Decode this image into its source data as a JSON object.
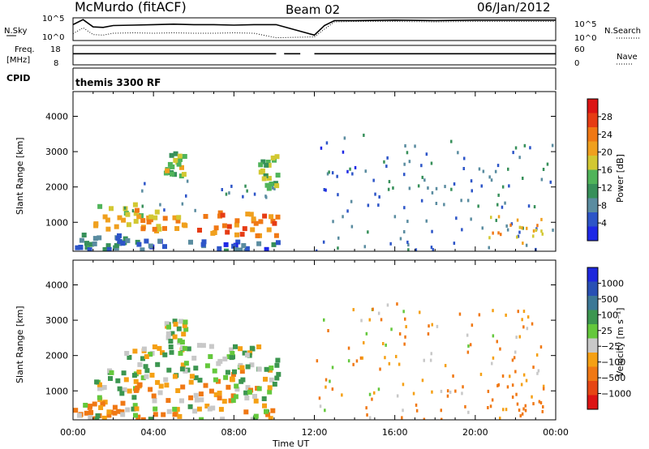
{
  "header": {
    "station": "McMurdo (fitACF)",
    "beam": "Beam 02",
    "date": "06/Jan/2012"
  },
  "chart_data": [
    {
      "type": "line",
      "panel": "noise",
      "left_label": "N.Sky",
      "right_label": "N.Search",
      "left_ticks": [
        "10^5",
        "10^0"
      ],
      "right_ticks": [
        "10^5",
        "10^0"
      ],
      "log_scale": true,
      "x": [
        0,
        0.5,
        1.0,
        1.5,
        2,
        3,
        4,
        5,
        6,
        7,
        8,
        9,
        10.1,
        12,
        12.5,
        13,
        14,
        16,
        18,
        20,
        22,
        24
      ],
      "series": [
        {
          "style": "solid",
          "values": [
            3.5,
            4.6,
            3.0,
            2.9,
            3.3,
            3.4,
            3.5,
            3.6,
            3.5,
            3.5,
            3.4,
            3.5,
            3.5,
            1.2,
            3.3,
            4.4,
            4.4,
            4.5,
            4.4,
            4.5,
            4.5,
            4.5
          ]
        },
        {
          "style": "dotted",
          "values": [
            1.5,
            2.8,
            1.3,
            1.2,
            1.6,
            1.7,
            1.6,
            1.7,
            1.6,
            1.6,
            1.7,
            1.6,
            0.6,
            0.8,
            2.5,
            4.1,
            4.2,
            4.2,
            4.1,
            4.2,
            4.2,
            4.2
          ]
        }
      ]
    },
    {
      "type": "line",
      "panel": "frequency",
      "left_label": "Freq.",
      "left_unit": "[MHz]",
      "right_label": "Nave",
      "left_ticks": [
        "18",
        "8"
      ],
      "right_ticks": [
        "60",
        "0"
      ],
      "series": [
        {
          "name": "Freq.",
          "style": "solid",
          "segments": [
            [
              0,
              10.1
            ],
            [
              10.5,
              11.3
            ],
            [
              12.0,
              24
            ]
          ],
          "value": 10.3
        },
        {
          "name": "Nave",
          "style": "dotted",
          "segments": [
            [
              0,
              10.1
            ],
            [
              10.5,
              11.3
            ],
            [
              12.0,
              24
            ]
          ],
          "value": 35
        }
      ]
    },
    {
      "type": "text",
      "panel": "cpid",
      "label": "CPID",
      "value": "themis 3300 RF"
    },
    {
      "type": "heatmap",
      "panel": "power",
      "ylabel": "Slant Range [km]",
      "yticks": [
        "4000",
        "3000",
        "2000",
        "1000"
      ],
      "ylim": [
        180,
        4700
      ],
      "xlim": [
        0,
        24
      ],
      "colorbar": {
        "label": "Power [dB]",
        "ticks": [
          "28",
          "24",
          "20",
          "16",
          "12",
          "8",
          "4"
        ],
        "range": [
          0,
          30
        ]
      },
      "blobs": [
        {
          "x": [
            0,
            2.5
          ],
          "y": [
            180,
            700
          ],
          "v": 9
        },
        {
          "x": [
            1.0,
            3.5
          ],
          "y": [
            700,
            1500
          ],
          "v": 18
        },
        {
          "x": [
            3.0,
            6.0
          ],
          "y": [
            750,
            1300
          ],
          "v": 19
        },
        {
          "x": [
            6.0,
            10.1
          ],
          "y": [
            600,
            1300
          ],
          "v": 22
        },
        {
          "x": [
            2.5,
            10.1
          ],
          "y": [
            1300,
            2300
          ],
          "v": 7
        },
        {
          "x": [
            4.5,
            5.5
          ],
          "y": [
            2300,
            3000
          ],
          "v": 15
        },
        {
          "x": [
            9.2,
            10.1
          ],
          "y": [
            1800,
            2900
          ],
          "v": 14
        },
        {
          "x": [
            0,
            10.1
          ],
          "y": [
            180,
            500
          ],
          "v": 6
        },
        {
          "x": [
            12.0,
            17.0
          ],
          "y": [
            180,
            3500
          ],
          "v": 6
        },
        {
          "x": [
            17.0,
            24.0
          ],
          "y": [
            180,
            3300
          ],
          "v": 7
        },
        {
          "x": [
            20.5,
            23.5
          ],
          "y": [
            400,
            1200
          ],
          "v": 19
        }
      ]
    },
    {
      "type": "heatmap",
      "panel": "velocity",
      "ylabel": "Slant Range [km]",
      "yticks": [
        "4000",
        "3000",
        "2000",
        "1000"
      ],
      "ylim": [
        180,
        4700
      ],
      "xlim": [
        0,
        24
      ],
      "xticks": [
        "00:00",
        "04:00",
        "08:00",
        "12:00",
        "16:00",
        "20:00",
        "00:00"
      ],
      "xlabel": "Time UT",
      "colorbar": {
        "label": "Velocity [m s⁻¹]",
        "ticks": [
          "1000",
          "500",
          "100",
          "25",
          "−25",
          "−100",
          "−500",
          "−1000"
        ],
        "range": [
          -1200,
          1200
        ]
      },
      "blobs": [
        {
          "x": [
            0,
            2.5
          ],
          "y": [
            180,
            700
          ],
          "v": -150
        },
        {
          "x": [
            1.0,
            3.5
          ],
          "y": [
            700,
            1600
          ],
          "v": 80
        },
        {
          "x": [
            3.0,
            8.0
          ],
          "y": [
            700,
            1300
          ],
          "v": -130
        },
        {
          "x": [
            7.5,
            10.1
          ],
          "y": [
            700,
            1600
          ],
          "v": 10
        },
        {
          "x": [
            2.5,
            10.1
          ],
          "y": [
            1300,
            2300
          ],
          "v": 60
        },
        {
          "x": [
            4.5,
            5.5
          ],
          "y": [
            2300,
            3000
          ],
          "v": 50
        },
        {
          "x": [
            0,
            10.1
          ],
          "y": [
            180,
            600
          ],
          "v": 0
        },
        {
          "x": [
            12.0,
            17.0
          ],
          "y": [
            180,
            3500
          ],
          "v": -60
        },
        {
          "x": [
            17.0,
            24.0
          ],
          "y": [
            180,
            3300
          ],
          "v": -120
        },
        {
          "x": [
            20.5,
            23.5
          ],
          "y": [
            400,
            1200
          ],
          "v": -200
        }
      ]
    }
  ],
  "colors": {
    "power": [
      "#1e28e6",
      "#2d55c8",
      "#5a8ca0",
      "#37905a",
      "#50b45a",
      "#d2c832",
      "#f0a01e",
      "#f07814",
      "#e63c14",
      "#dc1414"
    ],
    "velocity": [
      "#dc1414",
      "#e64614",
      "#f07814",
      "#f5a014",
      "#c8c8c8",
      "#64c83c",
      "#3c9650",
      "#3c7896",
      "#2850b4",
      "#1e28dc"
    ]
  }
}
